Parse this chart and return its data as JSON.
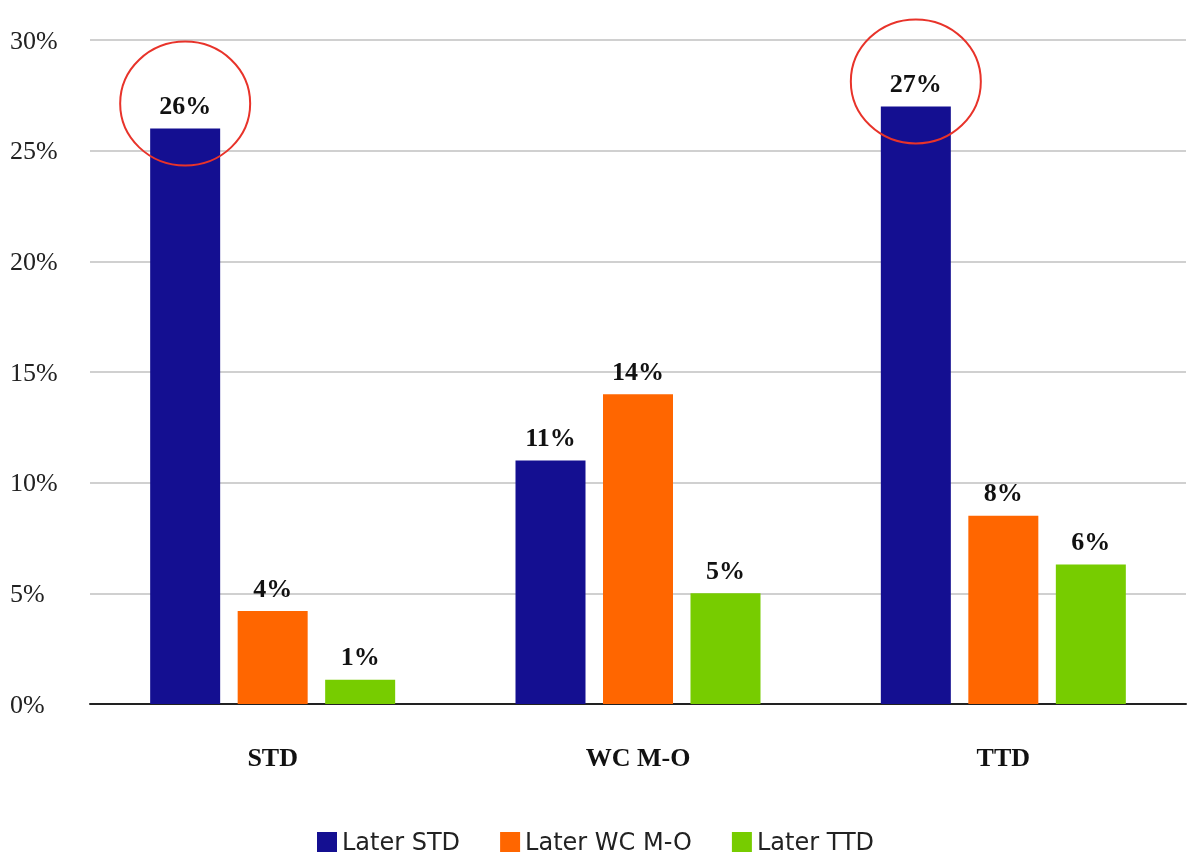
{
  "chart_data": {
    "type": "bar",
    "categories": [
      "STD",
      "WC M-O",
      "TTD"
    ],
    "series": [
      {
        "name": "Later STD",
        "color": "#140f91",
        "values": [
          26,
          11,
          27
        ],
        "value_labels": [
          "26%",
          "11%",
          "27%"
        ]
      },
      {
        "name": "Later WC M-O",
        "color": "#ff6600",
        "values": [
          4.2,
          14,
          8.5
        ],
        "value_labels": [
          "4%",
          "14%",
          "8%"
        ]
      },
      {
        "name": "Later TTD",
        "color": "#77cc00",
        "values": [
          1.1,
          5,
          6.3
        ],
        "value_labels": [
          "1%",
          "5%",
          "6%"
        ]
      }
    ],
    "ylim": [
      0,
      30
    ],
    "yticks": [
      {
        "value": 0,
        "label": "0%"
      },
      {
        "value": 5,
        "label": "5%"
      },
      {
        "value": 10,
        "label": "10%"
      },
      {
        "value": 15,
        "label": "15%"
      },
      {
        "value": 20,
        "label": "20%"
      },
      {
        "value": 25,
        "label": "25%"
      },
      {
        "value": 30,
        "label": "30%"
      }
    ],
    "grid": "y",
    "legend": "bottom"
  }
}
